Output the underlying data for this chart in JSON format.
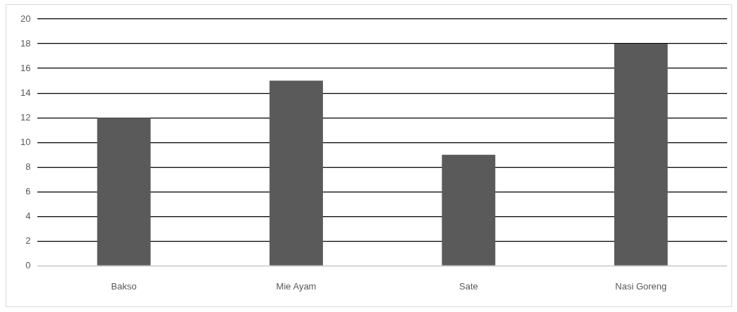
{
  "chart_data": {
    "type": "bar",
    "categories": [
      "Bakso",
      "Mie Ayam",
      "Sate",
      "Nasi Goreng"
    ],
    "values": [
      12,
      15,
      9,
      18
    ],
    "color": "#5a5a5a",
    "ylim": [
      0,
      20
    ],
    "yticks": [
      0,
      2,
      4,
      6,
      8,
      10,
      12,
      14,
      16,
      18,
      20
    ],
    "grid": "y",
    "legend": false
  }
}
